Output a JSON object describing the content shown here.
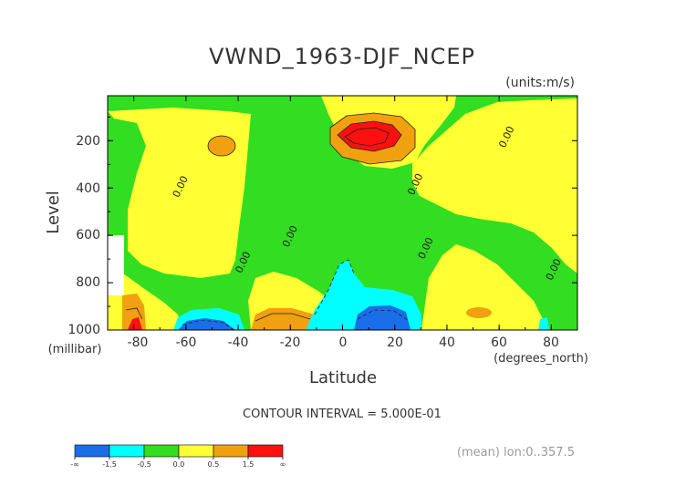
{
  "chart_data": {
    "type": "heatmap",
    "title": "VWND_1963-DJF_NCEP",
    "units": "(units:m/s)",
    "xlabel": "Latitude",
    "x_unit": "(degrees_north)",
    "ylabel": "Level",
    "y_unit": "(millibar)",
    "x_ticks": [
      "-80",
      "-60",
      "-40",
      "-20",
      "0",
      "20",
      "40",
      "60",
      "80"
    ],
    "y_ticks": [
      "200",
      "400",
      "600",
      "800",
      "1000"
    ],
    "xlim": [
      -90,
      90
    ],
    "ylim": [
      1000,
      10
    ],
    "contour_interval_text": "CONTOUR INTERVAL = 5.000E-01",
    "footer_text": "(mean) lon:0..357.5",
    "contour_labels": [
      {
        "text": "0.00",
        "lat": -61,
        "lev": 400
      },
      {
        "text": "0.00",
        "lat": -37,
        "lev": 720
      },
      {
        "text": "0.00",
        "lat": -19,
        "lev": 610
      },
      {
        "text": "0.00",
        "lat": 29,
        "lev": 390
      },
      {
        "text": "0.00",
        "lat": 33,
        "lev": 660
      },
      {
        "text": "0.00",
        "lat": 64,
        "lev": 190
      },
      {
        "text": "0.00",
        "lat": 82,
        "lev": 750
      }
    ],
    "legend": {
      "labels": [
        "-∞",
        "-1.5",
        "-0.5",
        "0.0",
        "0.5",
        "1.5",
        "∞"
      ],
      "colors": [
        "#1a6ee8",
        "#00ffff",
        "#33dd22",
        "#ffff33",
        "#f0a010",
        "#ff1010"
      ]
    },
    "colors": {
      "negative_strong": "#1a6ee8",
      "negative": "#00ffff",
      "near_zero": "#33dd22",
      "positive": "#ffff33",
      "positive_strong": "#f0a010",
      "max": "#ff1010"
    }
  }
}
